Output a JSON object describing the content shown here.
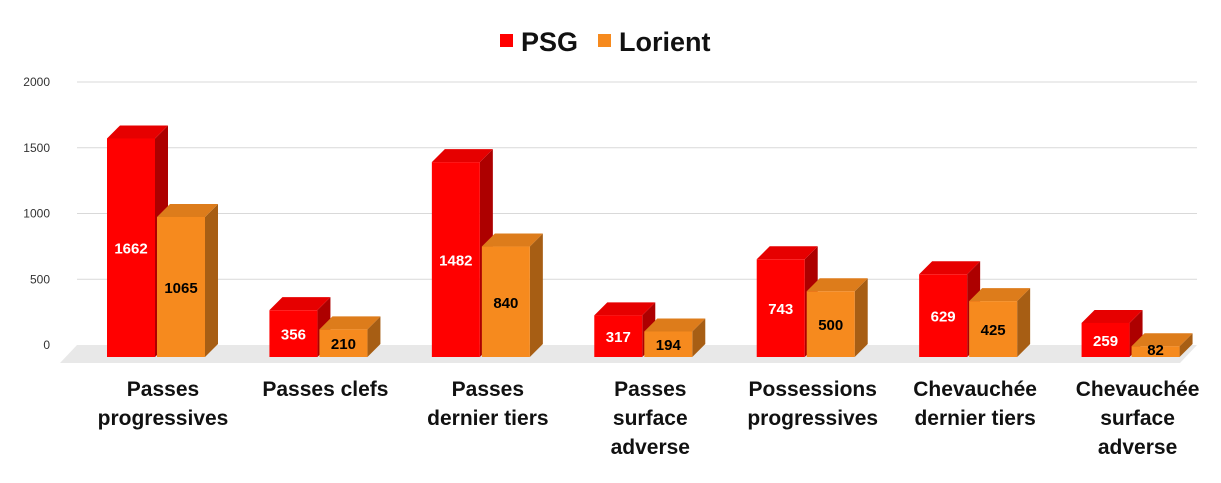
{
  "chart_data": {
    "type": "bar",
    "title": "",
    "xlabel": "",
    "ylabel": "",
    "ylim": [
      0,
      2000
    ],
    "yticks": [
      "0",
      "500",
      "1000",
      "1500",
      "2000"
    ],
    "grid": true,
    "legend_position": "top-center",
    "style": "3d",
    "categories": [
      [
        "Passes",
        "progressives"
      ],
      [
        "Passes clefs"
      ],
      [
        "Passes",
        "dernier tiers"
      ],
      [
        "Passes",
        "surface",
        "adverse"
      ],
      [
        "Possessions",
        "progressives"
      ],
      [
        "Chevauchée",
        "dernier tiers"
      ],
      [
        "Chevauchée",
        "surface",
        "adverse"
      ]
    ],
    "series": [
      {
        "name": "PSG",
        "color": "#ff0000",
        "label_color": "#ffffff",
        "values": [
          1662,
          356,
          1482,
          317,
          743,
          629,
          259
        ],
        "labels": [
          "1662",
          "356",
          "1482",
          "317",
          "743",
          "629",
          "259"
        ]
      },
      {
        "name": "Lorient",
        "color": "#f68a1e",
        "label_color": "#000000",
        "values": [
          1065,
          210,
          840,
          194,
          500,
          425,
          82
        ],
        "labels": [
          "1065",
          "210",
          "840",
          "194",
          "500",
          "425",
          "82"
        ]
      }
    ]
  }
}
